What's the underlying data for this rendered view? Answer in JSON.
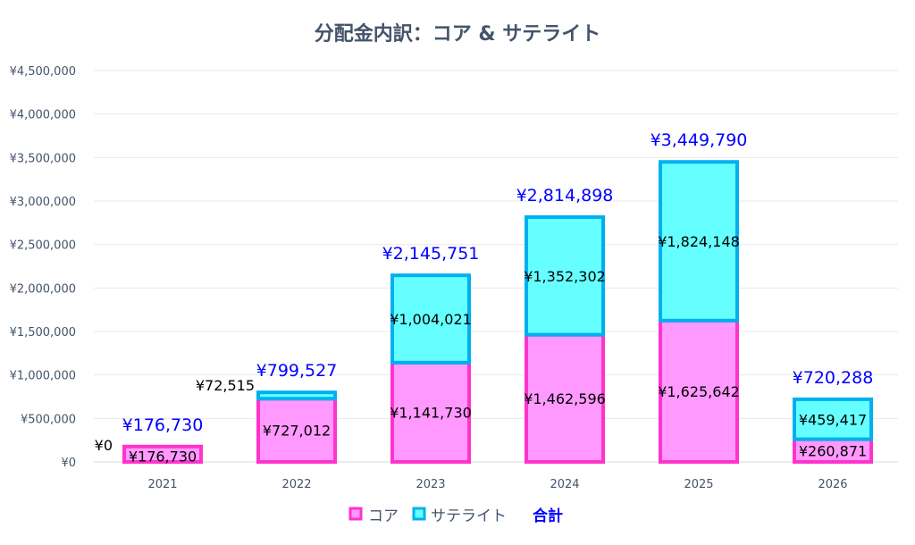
{
  "chart_data": {
    "type": "bar",
    "stacked": true,
    "title": "分配金内訳：コア & サテライト",
    "xlabel": "",
    "ylabel": "",
    "categories": [
      "2021",
      "2022",
      "2023",
      "2024",
      "2025",
      "2026"
    ],
    "series": [
      {
        "name": "コア",
        "fill": "#ff99ff",
        "stroke": "#ff33cc",
        "values": [
          176730,
          727012,
          1141730,
          1462596,
          1625642,
          260871
        ],
        "labels": [
          "¥176,730",
          "¥727,012",
          "¥1,141,730",
          "¥1,462,596",
          "¥1,625,642",
          "¥260,871"
        ]
      },
      {
        "name": "サテライト",
        "fill": "#66ffff",
        "stroke": "#00b0f0",
        "values": [
          0,
          72515,
          1004021,
          1352302,
          1824148,
          459417
        ],
        "labels": [
          "¥0",
          "¥72,515",
          "¥1,004,021",
          "¥1,352,302",
          "¥1,824,148",
          "¥459,417"
        ]
      }
    ],
    "totals": {
      "name": "合計",
      "color": "#0000ff",
      "values": [
        176730,
        799527,
        2145751,
        2814898,
        3449790,
        720288
      ],
      "labels": [
        "¥176,730",
        "¥799,527",
        "¥2,145,751",
        "¥2,814,898",
        "¥3,449,790",
        "¥720,288"
      ]
    },
    "ylim": [
      0,
      4500000
    ],
    "yticks": [
      0,
      500000,
      1000000,
      1500000,
      2000000,
      2500000,
      3000000,
      3500000,
      4000000,
      4500000
    ],
    "ytick_labels": [
      "¥0",
      "¥500,000",
      "¥1,000,000",
      "¥1,500,000",
      "¥2,000,000",
      "¥2,500,000",
      "¥3,000,000",
      "¥3,500,000",
      "¥4,000,000",
      "¥4,500,000"
    ],
    "grid": true,
    "legend": "bottom"
  }
}
